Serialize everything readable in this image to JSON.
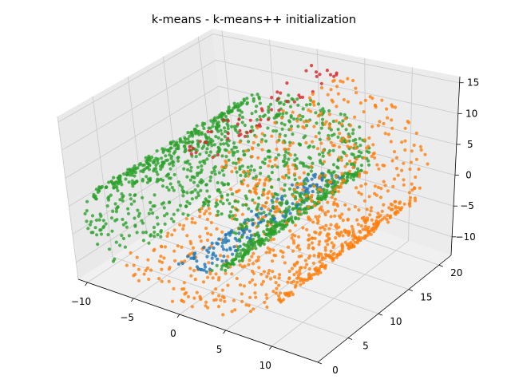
{
  "chart_data": {
    "type": "scatter",
    "projection": "3d",
    "title": "k-means - k-means++ initialization",
    "grid": true,
    "pane_color": "#f0f0f0",
    "axes": {
      "x": {
        "range": [
          -11,
          15
        ],
        "ticks": [
          -10,
          -5,
          0,
          5,
          10
        ],
        "tick_labels": [
          "−10",
          "−5",
          "0",
          "5",
          "10"
        ]
      },
      "y": {
        "range": [
          0,
          22
        ],
        "ticks": [
          0,
          5,
          10,
          15,
          20
        ],
        "tick_labels": [
          "0",
          "5",
          "10",
          "15",
          "20"
        ]
      },
      "z": {
        "range": [
          -13,
          16
        ],
        "ticks": [
          -10,
          -5,
          0,
          5,
          10,
          15
        ],
        "tick_labels": [
          "−10",
          "−5",
          "0",
          "5",
          "10",
          "15"
        ]
      }
    },
    "clusters": [
      {
        "label": 0,
        "color": "#1f77b4",
        "theta_range": [
          3.0,
          5.4
        ]
      },
      {
        "label": 1,
        "color": "#ff7f0e",
        "theta_range": [
          10.3,
          13.9
        ]
      },
      {
        "label": 2,
        "color": "#2ca02c",
        "theta_range": [
          5.4,
          10.3
        ]
      },
      {
        "label": 3,
        "color": "#d62728",
        "theta_range": [
          13.9,
          15.0
        ]
      }
    ]
  }
}
